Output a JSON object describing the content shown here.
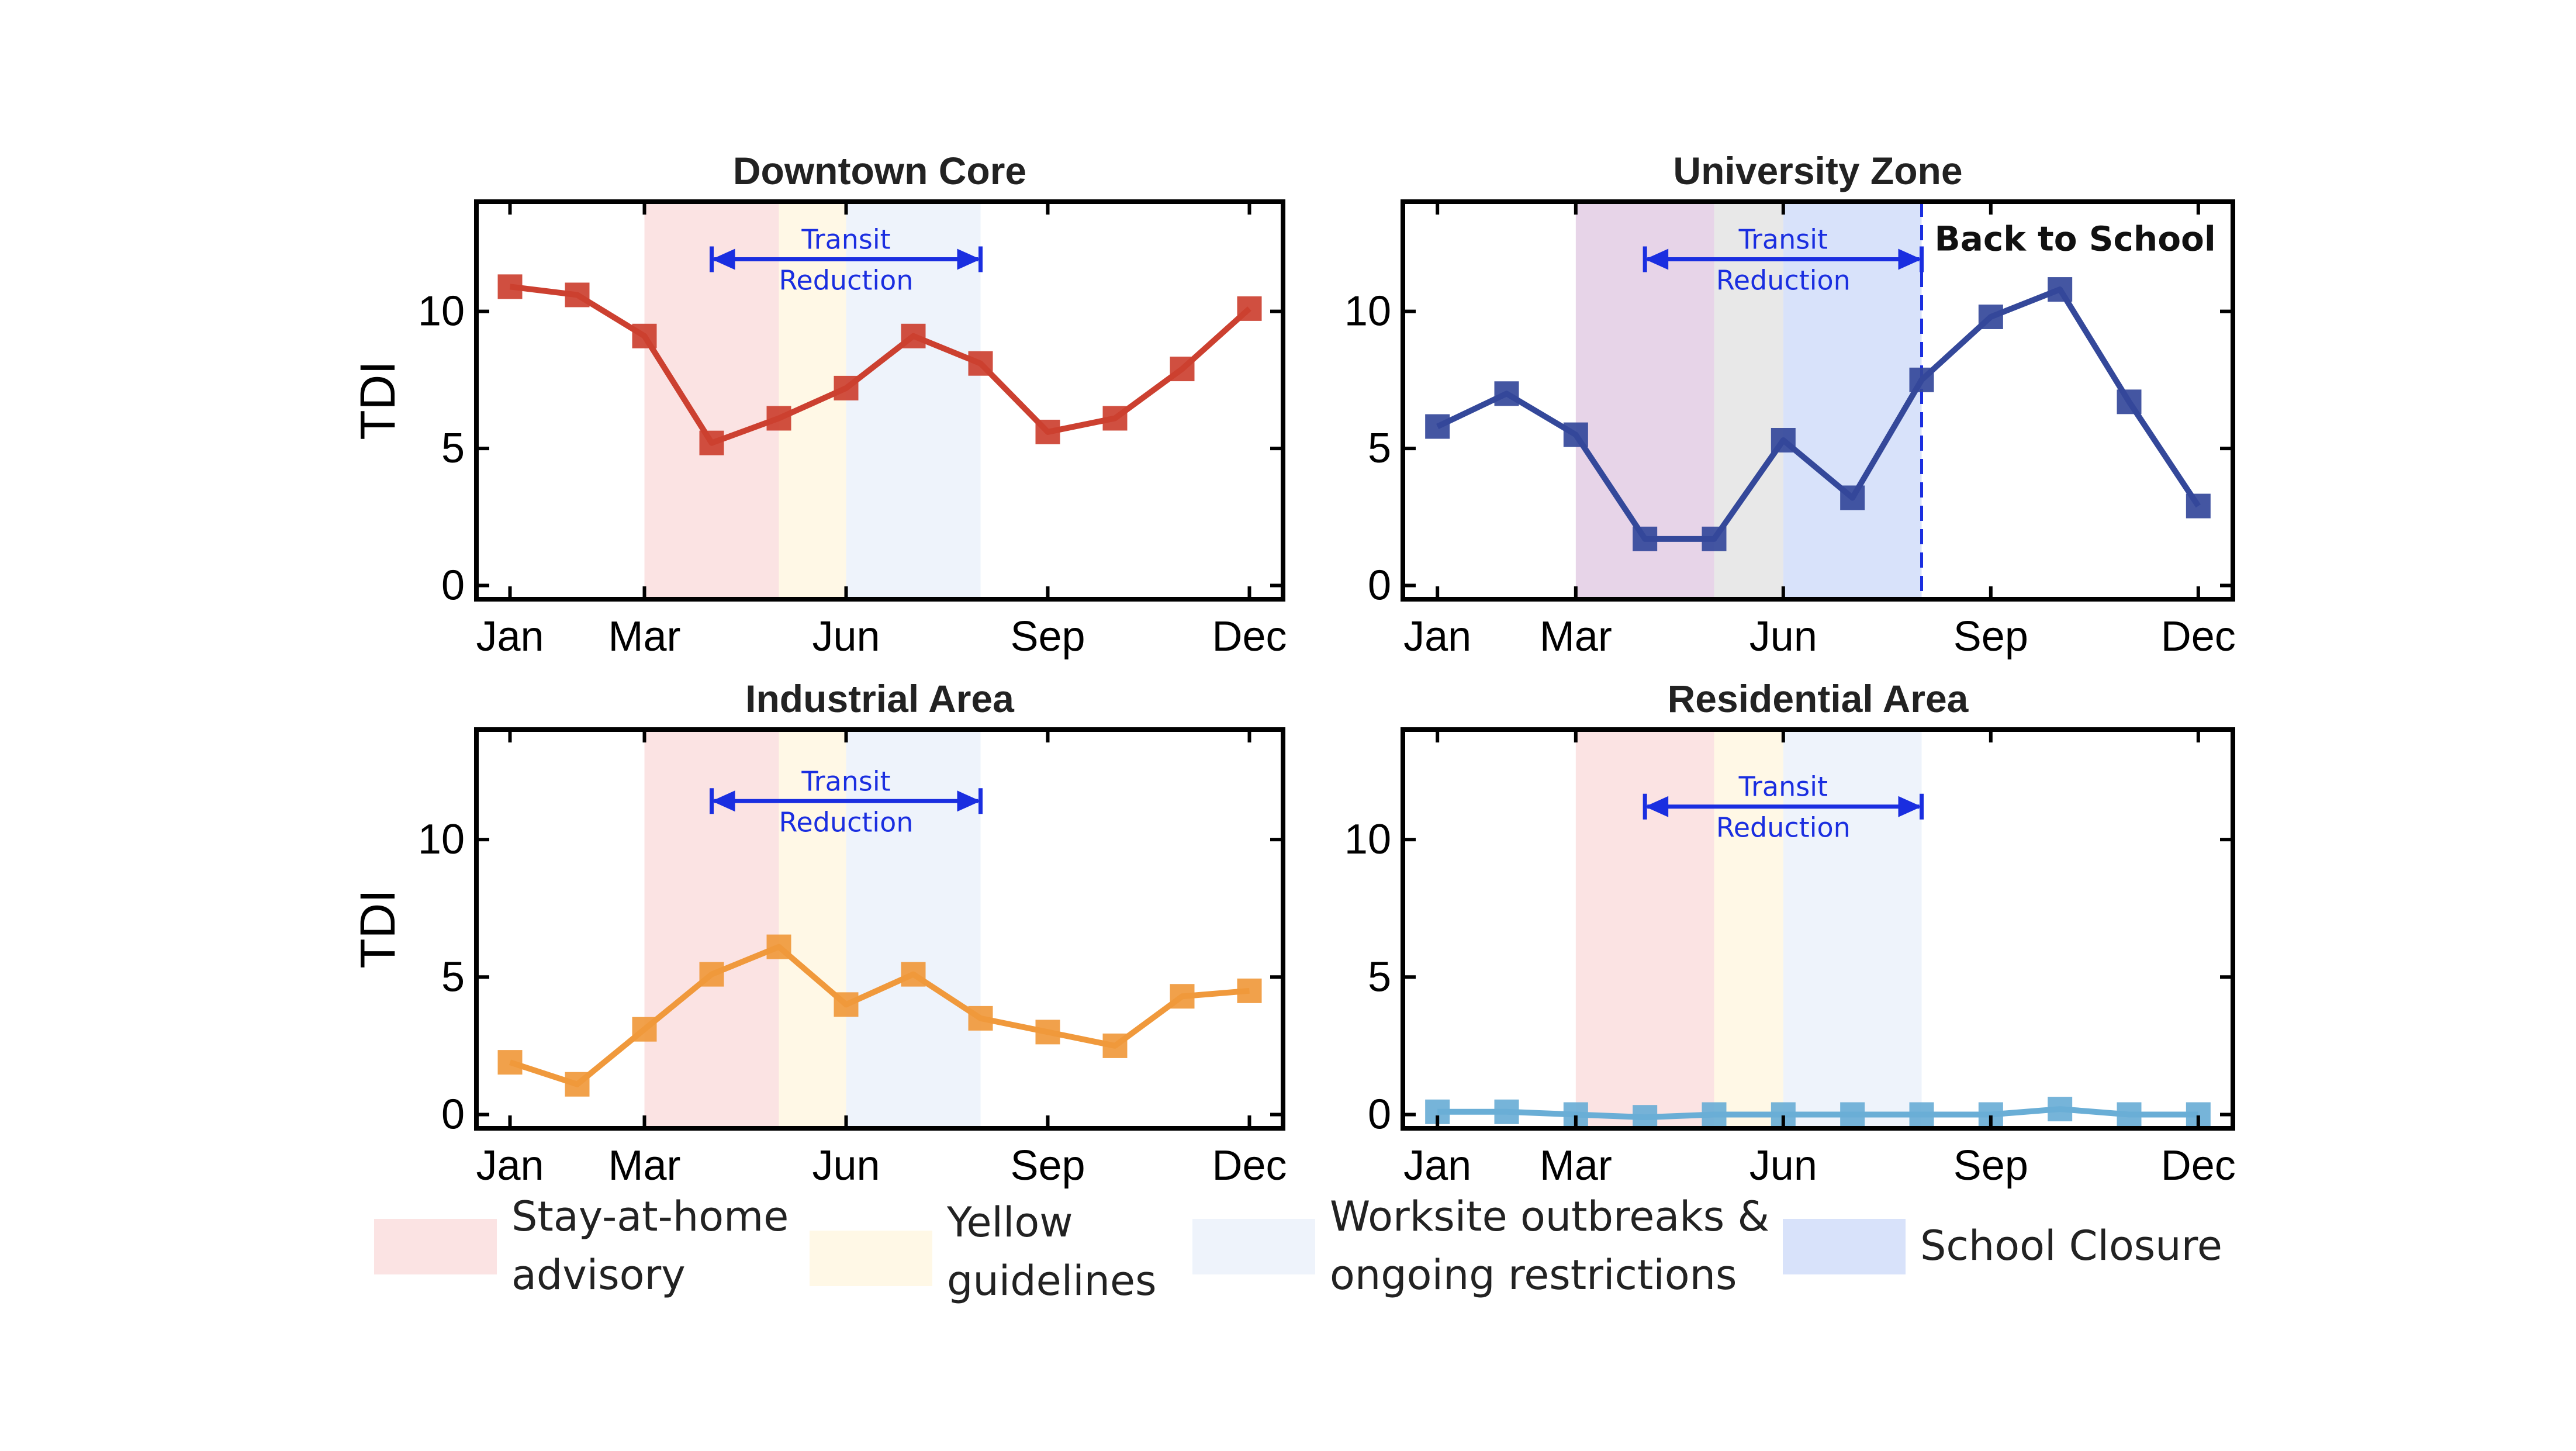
{
  "chart_data": [
    {
      "type": "line",
      "title": "Downtown Core",
      "ylabel": "TDI",
      "xlabel": "",
      "x_ticks": [
        "Jan",
        "Mar",
        "Jun",
        "Sep",
        "Dec"
      ],
      "x_tick_months": [
        1,
        3,
        6,
        9,
        12
      ],
      "y_ticks": [
        0,
        5,
        10
      ],
      "xlim": [
        0.5,
        12.5
      ],
      "ylim": [
        -0.5,
        14
      ],
      "grid": false,
      "series": [
        {
          "color": "#cc4030",
          "x": [
            1,
            2,
            3,
            4,
            5,
            6,
            7,
            8,
            9,
            10,
            11,
            12
          ],
          "y": [
            10.9,
            10.6,
            9.1,
            5.2,
            6.1,
            7.2,
            9.1,
            8.1,
            5.6,
            6.1,
            7.9,
            10.1
          ]
        }
      ],
      "bands": [
        {
          "key": "stay",
          "from": 3,
          "to": 5
        },
        {
          "key": "yellow",
          "from": 5,
          "to": 6
        },
        {
          "key": "worksite",
          "from": 6,
          "to": 8
        }
      ],
      "arrow": {
        "from": 4,
        "to": 8,
        "y": 11.9,
        "label_line1": "Transit",
        "label_line2": "Reduction"
      }
    },
    {
      "type": "line",
      "title": "University Zone",
      "ylabel": "",
      "xlabel": "",
      "x_ticks": [
        "Jan",
        "Mar",
        "Jun",
        "Sep",
        "Dec"
      ],
      "x_tick_months": [
        1,
        3,
        6,
        9,
        12
      ],
      "y_ticks": [
        0,
        5,
        10
      ],
      "xlim": [
        0.5,
        12.5
      ],
      "ylim": [
        -0.5,
        14
      ],
      "grid": false,
      "series": [
        {
          "color": "#34489a",
          "x": [
            1,
            2,
            3,
            4,
            5,
            6,
            7,
            8,
            9,
            10,
            11,
            12
          ],
          "y": [
            5.8,
            7.0,
            5.5,
            1.7,
            1.7,
            5.3,
            3.2,
            7.5,
            9.8,
            10.8,
            6.7,
            2.9
          ]
        }
      ],
      "bands": [
        {
          "key": "stay_school",
          "from": 3,
          "to": 5
        },
        {
          "key": "yellow_school",
          "from": 5,
          "to": 6
        },
        {
          "key": "school",
          "from": 6,
          "to": 8
        }
      ],
      "arrow": {
        "from": 4,
        "to": 8,
        "y": 11.9,
        "label_line1": "Transit",
        "label_line2": "Reduction"
      },
      "vline": {
        "x": 8,
        "label": "Back to School"
      }
    },
    {
      "type": "line",
      "title": "Industrial Area",
      "ylabel": "TDI",
      "xlabel": "",
      "x_ticks": [
        "Jan",
        "Mar",
        "Jun",
        "Sep",
        "Dec"
      ],
      "x_tick_months": [
        1,
        3,
        6,
        9,
        12
      ],
      "y_ticks": [
        0,
        5,
        10
      ],
      "xlim": [
        0.5,
        12.5
      ],
      "ylim": [
        -0.5,
        14
      ],
      "grid": false,
      "series": [
        {
          "color": "#f0993c",
          "x": [
            1,
            2,
            3,
            4,
            5,
            6,
            7,
            8,
            9,
            10,
            11,
            12
          ],
          "y": [
            1.9,
            1.1,
            3.1,
            5.1,
            6.1,
            4.0,
            5.1,
            3.5,
            3.0,
            2.5,
            4.3,
            4.5
          ]
        }
      ],
      "bands": [
        {
          "key": "stay",
          "from": 3,
          "to": 5
        },
        {
          "key": "yellow",
          "from": 5,
          "to": 6
        },
        {
          "key": "worksite",
          "from": 6,
          "to": 8
        }
      ],
      "arrow": {
        "from": 4,
        "to": 8,
        "y": 11.4,
        "label_line1": "Transit",
        "label_line2": "Reduction"
      }
    },
    {
      "type": "line",
      "title": "Residential Area",
      "ylabel": "",
      "xlabel": "",
      "x_ticks": [
        "Jan",
        "Mar",
        "Jun",
        "Sep",
        "Dec"
      ],
      "x_tick_months": [
        1,
        3,
        6,
        9,
        12
      ],
      "y_ticks": [
        0,
        5,
        10
      ],
      "xlim": [
        0.5,
        12.5
      ],
      "ylim": [
        -0.5,
        14
      ],
      "grid": false,
      "series": [
        {
          "color": "#6aaed6",
          "x": [
            1,
            2,
            3,
            4,
            5,
            6,
            7,
            8,
            9,
            10,
            11,
            12
          ],
          "y": [
            0.1,
            0.1,
            0.0,
            -0.1,
            0.0,
            0.0,
            0.0,
            0.0,
            0.0,
            0.2,
            0.0,
            0.0
          ]
        }
      ],
      "bands": [
        {
          "key": "stay",
          "from": 3,
          "to": 5
        },
        {
          "key": "yellow",
          "from": 5,
          "to": 6
        },
        {
          "key": "worksite",
          "from": 6,
          "to": 8
        }
      ],
      "arrow": {
        "from": 4,
        "to": 8,
        "y": 11.2,
        "label_line1": "Transit",
        "label_line2": "Reduction"
      }
    }
  ],
  "band_colors": {
    "stay": "#fbe3e3",
    "yellow": "#fff8e6",
    "worksite": "#eef3fb",
    "stay_school": "#e7d4e8",
    "yellow_school": "#e8e8e8",
    "school": "#d8e2fa",
    "arrow": "#1a2ee0"
  },
  "legend": {
    "placement": "bottom",
    "items": [
      {
        "key": "stay",
        "line1": "Stay-at-home",
        "line2": "advisory"
      },
      {
        "key": "yellow",
        "line1": "Yellow",
        "line2": "guidelines"
      },
      {
        "key": "worksite",
        "line1": "Worksite outbreaks &",
        "line2": "ongoing restrictions"
      },
      {
        "key": "school",
        "line1": "School Closure",
        "line2": ""
      }
    ]
  }
}
